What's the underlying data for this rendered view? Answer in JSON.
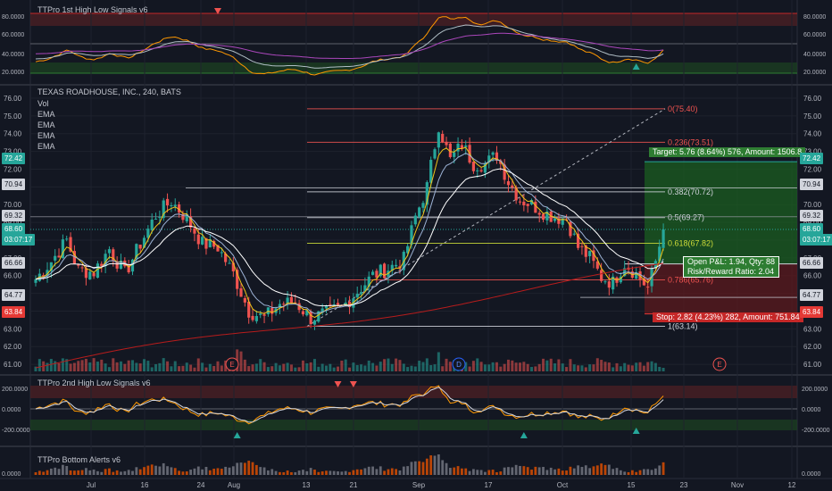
{
  "panes": {
    "top_title": "TTPro 1st High Low Signals v6",
    "main_title": "TEXAS ROADHOUSE, INC., 240, BATS",
    "main_legend": [
      "Vol",
      "EMA",
      "EMA",
      "EMA",
      "EMA"
    ],
    "osc2_title": "TTPro 2nd High Low Signals v6",
    "bottom_title": "TTPro Bottom Alerts v6"
  },
  "colors": {
    "background": "#131722",
    "bull": "#26a69a",
    "bear": "#ef5350",
    "grid": "#1e222d",
    "axis_text": "#b2b5be",
    "target_zone": "#1b5e20",
    "stop_zone": "#5c1a1d",
    "ema_fast": "#f0c419",
    "ema_mid": "#9db3d6",
    "ema_slow": "#ffffff",
    "ema_long": "#b71c1c"
  },
  "price_tags": [
    {
      "value": "72.42",
      "color": "#26a69a"
    },
    {
      "value": "70.94",
      "color": "#d1d4dc"
    },
    {
      "value": "69.32",
      "color": "#d1d4dc"
    },
    {
      "value": "68.60",
      "color": "#26a69a"
    },
    {
      "value": "03:07:17",
      "color": "#26a69a"
    },
    {
      "value": "66.66",
      "color": "#d1d4dc"
    },
    {
      "value": "64.77",
      "color": "#d1d4dc"
    },
    {
      "value": "63.84",
      "color": "#e53935"
    }
  ],
  "position": {
    "target": "Target: 5.76 (8.64%) 576, Amount: 1506.8",
    "stop": "Stop: 2.82 (4.23%) 282, Amount: 751.84",
    "pnl": "Open P&L: 1.94, Qty: 88",
    "rr": "Risk/Reward Ratio: 2.04"
  },
  "fib_labels": [
    "0(75.40)",
    "0.236(73.51)",
    "0.382(70.72)",
    "0.5(69.27)",
    "0.618(67.82)",
    "0.786(65.76)",
    "1(63.14)"
  ],
  "event_markers": [
    "E",
    "D",
    "E"
  ],
  "x_labels": [
    "Jul",
    "16",
    "24",
    "Aug",
    "13",
    "21",
    "Sep",
    "17",
    "Oct",
    "15",
    "23",
    "Nov",
    "12"
  ],
  "chart_data": {
    "type": "candlestick",
    "title": "TEXAS ROADHOUSE, INC., 240, BATS",
    "ylim": [
      60.5,
      76.5
    ],
    "y_ticks": [
      "76.00",
      "75.00",
      "74.00",
      "73.00",
      "72.00",
      "71.00",
      "70.00",
      "69.00",
      "68.00",
      "67.00",
      "66.00",
      "65.00",
      "64.00",
      "63.00",
      "62.00",
      "61.00"
    ],
    "top_ticks": [
      "80.0000",
      "60.0000",
      "40.0000",
      "20.0000"
    ],
    "osc2_ticks": [
      "200.0000",
      "0.0000",
      "-200.0000"
    ],
    "bottom_ticks": [
      "0.0000"
    ],
    "fib_levels": [
      75.4,
      73.51,
      70.72,
      69.27,
      67.82,
      65.76,
      63.14
    ],
    "target_price": 72.42,
    "entry_price": 66.66,
    "stop_price": 63.84,
    "last_price": 68.6,
    "anchors": [
      [
        0,
        65.8
      ],
      [
        4,
        66.8
      ],
      [
        8,
        68.0
      ],
      [
        11,
        66.3
      ],
      [
        15,
        66.2
      ],
      [
        19,
        67.5
      ],
      [
        23,
        66.1
      ],
      [
        27,
        67.8
      ],
      [
        31,
        69.4
      ],
      [
        35,
        70.2
      ],
      [
        39,
        69.2
      ],
      [
        43,
        67.8
      ],
      [
        47,
        67.6
      ],
      [
        51,
        66.1
      ],
      [
        55,
        64.0
      ],
      [
        59,
        63.6
      ],
      [
        63,
        64.4
      ],
      [
        67,
        64.5
      ],
      [
        71,
        63.6
      ],
      [
        75,
        63.9
      ],
      [
        79,
        64.2
      ],
      [
        83,
        65.1
      ],
      [
        87,
        66.0
      ],
      [
        91,
        66.4
      ],
      [
        95,
        66.9
      ],
      [
        98,
        69.3
      ],
      [
        101,
        71.0
      ],
      [
        104,
        74.5
      ],
      [
        107,
        72.5
      ],
      [
        110,
        73.4
      ],
      [
        113,
        72.3
      ],
      [
        116,
        72.3
      ],
      [
        119,
        72.8
      ],
      [
        122,
        71.3
      ],
      [
        125,
        70.3
      ],
      [
        128,
        70.0
      ],
      [
        131,
        69.6
      ],
      [
        134,
        69.3
      ],
      [
        137,
        69.2
      ],
      [
        140,
        67.6
      ],
      [
        143,
        67.0
      ],
      [
        146,
        65.9
      ],
      [
        149,
        65.6
      ],
      [
        152,
        66.7
      ],
      [
        155,
        66.1
      ],
      [
        158,
        65.3
      ],
      [
        160,
        66.8
      ],
      [
        162,
        68.6
      ]
    ]
  }
}
